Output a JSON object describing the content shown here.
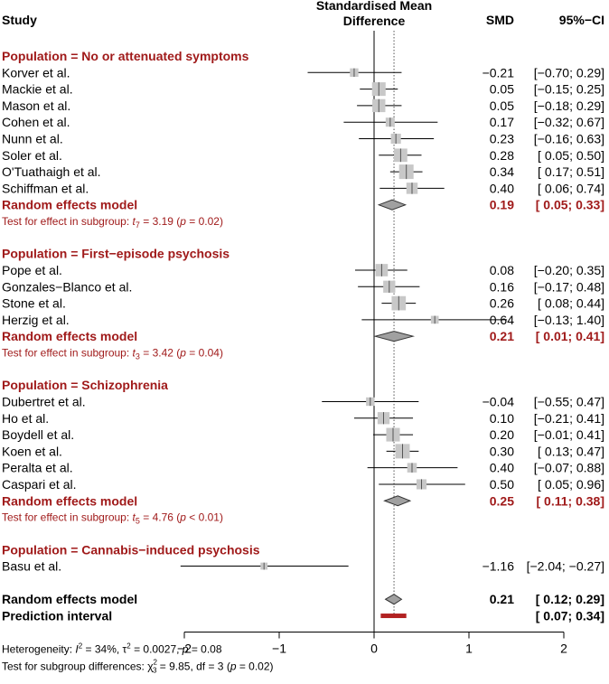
{
  "headers": {
    "study": "Study",
    "effect_line1": "Standardised Mean",
    "effect_line2": "Difference",
    "smd": "SMD",
    "ci": "95%−CI"
  },
  "chart_data": {
    "type": "forest",
    "xlim": [
      -2,
      2
    ],
    "xticks": [
      -2,
      -1,
      0,
      1,
      2
    ],
    "tick_labels": [
      "−2",
      "−1",
      "0",
      "1",
      "2"
    ],
    "null_line": 0,
    "pooled_line": 0.21,
    "groups": [
      {
        "label": "Population = No or attenuated symptoms",
        "studies": [
          {
            "name": "Korver et al.",
            "smd": -0.21,
            "lo": -0.7,
            "hi": 0.29,
            "smd_text": "−0.21",
            "ci_text": "[−0.70;  0.29]",
            "weight": 0.2
          },
          {
            "name": "Mackie et al.",
            "smd": 0.05,
            "lo": -0.15,
            "hi": 0.25,
            "smd_text": "0.05",
            "ci_text": "[−0.15;  0.25]",
            "weight": 0.85
          },
          {
            "name": "Mason et al.",
            "smd": 0.05,
            "lo": -0.18,
            "hi": 0.29,
            "smd_text": "0.05",
            "ci_text": "[−0.18;  0.29]",
            "weight": 0.75
          },
          {
            "name": "Cohen et al.",
            "smd": 0.17,
            "lo": -0.32,
            "hi": 0.67,
            "smd_text": "0.17",
            "ci_text": "[−0.32;  0.67]",
            "weight": 0.25
          },
          {
            "name": "Nunn et al.",
            "smd": 0.23,
            "lo": -0.16,
            "hi": 0.63,
            "smd_text": "0.23",
            "ci_text": "[−0.16;  0.63]",
            "weight": 0.35
          },
          {
            "name": "Soler et al.",
            "smd": 0.28,
            "lo": 0.05,
            "hi": 0.5,
            "smd_text": "0.28",
            "ci_text": "[ 0.05;  0.50]",
            "weight": 0.8
          },
          {
            "name": "O'Tuathaigh et al.",
            "smd": 0.34,
            "lo": 0.17,
            "hi": 0.51,
            "smd_text": "0.34",
            "ci_text": "[ 0.17;  0.51]",
            "weight": 1.0
          },
          {
            "name": "Schiffman et al.",
            "smd": 0.4,
            "lo": 0.06,
            "hi": 0.74,
            "smd_text": "0.40",
            "ci_text": "[ 0.06;  0.74]",
            "weight": 0.5
          }
        ],
        "pooled": {
          "label": "Random effects model",
          "smd": 0.19,
          "lo": 0.05,
          "hi": 0.33,
          "smd_text": "0.19",
          "ci_text": "[ 0.05;  0.33]"
        },
        "test": {
          "prefix": "Test for effect in subgroup: ",
          "t": "t",
          "df": "7",
          "stat": " = 3.19 (",
          "p": "p",
          "pval": " = 0.02)"
        }
      },
      {
        "label": "Population = First−episode psychosis",
        "studies": [
          {
            "name": "Pope et al.",
            "smd": 0.08,
            "lo": -0.2,
            "hi": 0.35,
            "smd_text": "0.08",
            "ci_text": "[−0.20;  0.35]",
            "weight": 0.65
          },
          {
            "name": "Gonzales−Blanco et al.",
            "smd": 0.16,
            "lo": -0.17,
            "hi": 0.48,
            "smd_text": "0.16",
            "ci_text": "[−0.17;  0.48]",
            "weight": 0.6
          },
          {
            "name": "Stone et al.",
            "smd": 0.26,
            "lo": 0.08,
            "hi": 0.44,
            "smd_text": "0.26",
            "ci_text": "[ 0.08;  0.44]",
            "weight": 0.95
          },
          {
            "name": "Herzig et al.",
            "smd": 0.64,
            "lo": -0.13,
            "hi": 1.4,
            "smd_text": "0.64",
            "ci_text": "[−0.13;  1.40]",
            "weight": 0.15
          }
        ],
        "pooled": {
          "label": "Random effects model",
          "smd": 0.21,
          "lo": 0.01,
          "hi": 0.41,
          "smd_text": "0.21",
          "ci_text": "[ 0.01;  0.41]"
        },
        "test": {
          "prefix": "Test for effect in subgroup: ",
          "t": "t",
          "df": "3",
          "stat": " = 3.42 (",
          "p": "p",
          "pval": " = 0.04)"
        }
      },
      {
        "label": "Population = Schizophrenia",
        "studies": [
          {
            "name": "Dubertret et al.",
            "smd": -0.04,
            "lo": -0.55,
            "hi": 0.47,
            "smd_text": "−0.04",
            "ci_text": "[−0.55;  0.47]",
            "weight": 0.2
          },
          {
            "name": "Ho et al.",
            "smd": 0.1,
            "lo": -0.21,
            "hi": 0.41,
            "smd_text": "0.10",
            "ci_text": "[−0.21;  0.41]",
            "weight": 0.6
          },
          {
            "name": "Boydell et al.",
            "smd": 0.2,
            "lo": -0.01,
            "hi": 0.41,
            "smd_text": "0.20",
            "ci_text": "[−0.01;  0.41]",
            "weight": 0.85
          },
          {
            "name": "Koen et al.",
            "smd": 0.3,
            "lo": 0.13,
            "hi": 0.47,
            "smd_text": "0.30",
            "ci_text": "[ 0.13;  0.47]",
            "weight": 1.0
          },
          {
            "name": "Peralta et al.",
            "smd": 0.4,
            "lo": -0.07,
            "hi": 0.88,
            "smd_text": "0.40",
            "ci_text": "[−0.07;  0.88]",
            "weight": 0.3
          },
          {
            "name": "Caspari et al.",
            "smd": 0.5,
            "lo": 0.05,
            "hi": 0.96,
            "smd_text": "0.50",
            "ci_text": "[ 0.05;  0.96]",
            "weight": 0.35
          }
        ],
        "pooled": {
          "label": "Random effects model",
          "smd": 0.25,
          "lo": 0.11,
          "hi": 0.38,
          "smd_text": "0.25",
          "ci_text": "[ 0.11;  0.38]"
        },
        "test": {
          "prefix": "Test for effect in subgroup: ",
          "t": "t",
          "df": "5",
          "stat": " = 4.76 (",
          "p": "p",
          "pval": " < 0.01)"
        }
      },
      {
        "label": "Population = Cannabis−induced psychosis",
        "studies": [
          {
            "name": "Basu et al.",
            "smd": -1.16,
            "lo": -2.04,
            "hi": -0.27,
            "smd_text": "−1.16",
            "ci_text": "[−2.04; −0.27]",
            "weight": 0.1
          }
        ],
        "pooled": null,
        "test": null
      }
    ],
    "overall": {
      "label": "Random effects model",
      "smd": 0.21,
      "lo": 0.12,
      "hi": 0.29,
      "smd_text": "0.21",
      "ci_text": "[ 0.12;  0.29]"
    },
    "prediction": {
      "label": "Prediction interval",
      "lo": 0.07,
      "hi": 0.34,
      "ci_text": "[ 0.07;  0.34]"
    },
    "footer": {
      "heterogeneity": {
        "prefix": "Heterogeneity: ",
        "i": "I",
        "rest": " = 34%, τ",
        "rest2": " = 0.0027, ",
        "p": "p",
        "pval": " = 0.08"
      },
      "subgroup_diff": {
        "prefix": "Test for subgroup differences: χ",
        "df": "3",
        "rest": " = 9.85, df = 3 (",
        "p": "p",
        "pval": " = 0.02)"
      }
    }
  },
  "colors": {
    "group_red": "#a01a1a",
    "square_fill": "#c8c8c8",
    "diamond_fill": "#a0a0a0",
    "prediction_bar": "#b22222"
  }
}
